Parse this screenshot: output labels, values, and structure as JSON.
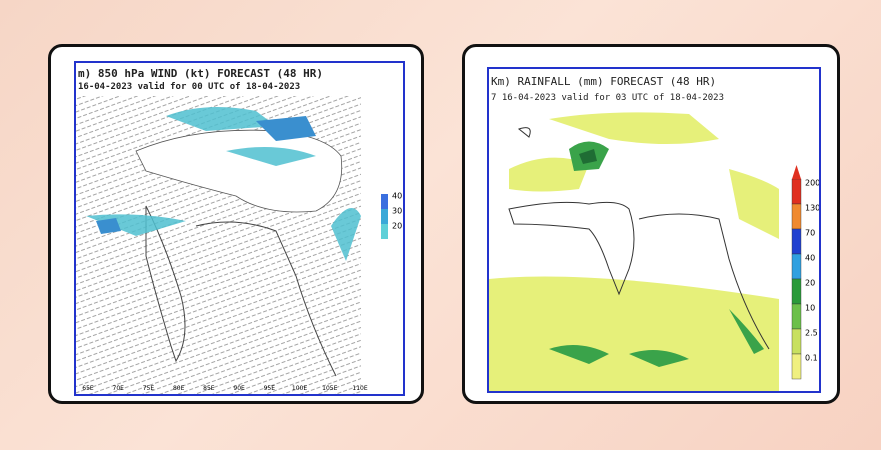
{
  "panels": [
    {
      "title": "m) 850 hPa WIND (kt) FORECAST (48 HR)",
      "subtitle": "16-04-2023 valid for 00 UTC of 18-04-2023",
      "colorbar": [
        "40",
        "30",
        "20"
      ],
      "longitudes": [
        "65E",
        "70E",
        "75E",
        "80E",
        "85E",
        "90E",
        "95E",
        "100E",
        "105E",
        "110E"
      ]
    },
    {
      "title": "Km) RAINFALL (mm) FORECAST (48 HR)",
      "subtitle": "7 16-04-2023 valid for 03 UTC of 18-04-2023",
      "colorbar": [
        "200",
        "130",
        "70",
        "40",
        "20",
        "10",
        "2.5",
        "0.1"
      ]
    }
  ]
}
